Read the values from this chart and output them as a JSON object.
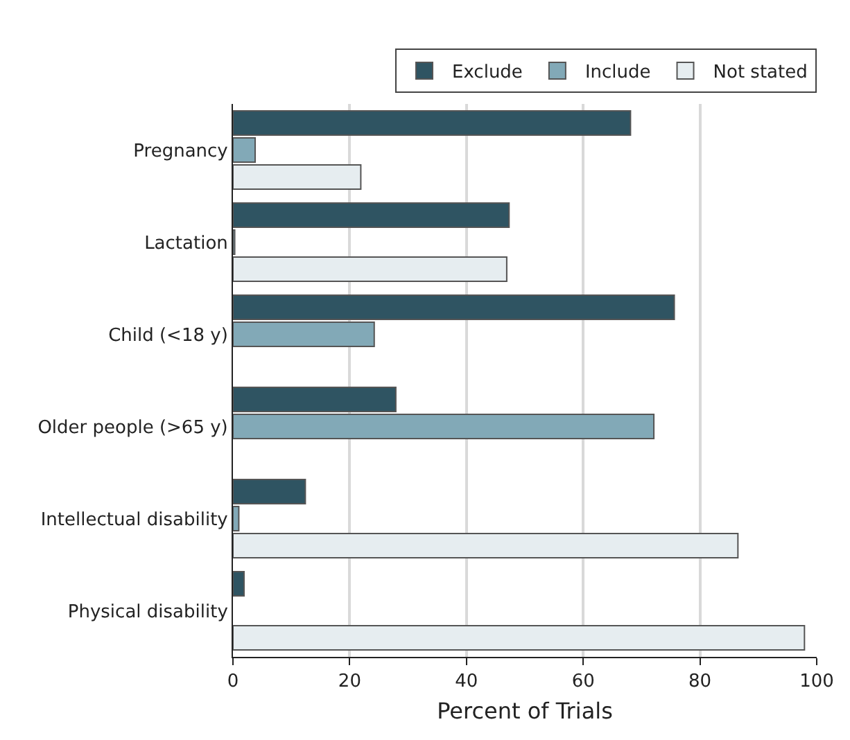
{
  "chart_data": {
    "type": "bar",
    "orientation": "horizontal",
    "xlabel": "Percent of Trials",
    "categories": [
      "Pregnancy",
      "Lactation",
      "Child (<18 y)",
      "Older people (>65 y)",
      "Intellectual disability",
      "Physical disability"
    ],
    "series": [
      {
        "name": "Exclude",
        "color": "#2f5462",
        "values": [
          68.1,
          47.3,
          75.6,
          27.9,
          12.4,
          1.9
        ]
      },
      {
        "name": "Include",
        "color": "#82a9b7",
        "values": [
          3.8,
          0.3,
          24.2,
          72.1,
          1.0,
          null
        ]
      },
      {
        "name": "Not stated",
        "color": "#e6edf0",
        "values": [
          21.9,
          46.9,
          null,
          null,
          86.5,
          97.9
        ]
      }
    ],
    "xlim": [
      0,
      100
    ],
    "xticks": [
      0,
      20,
      40,
      60,
      80,
      100
    ],
    "grid": "x",
    "legend": "top right"
  }
}
